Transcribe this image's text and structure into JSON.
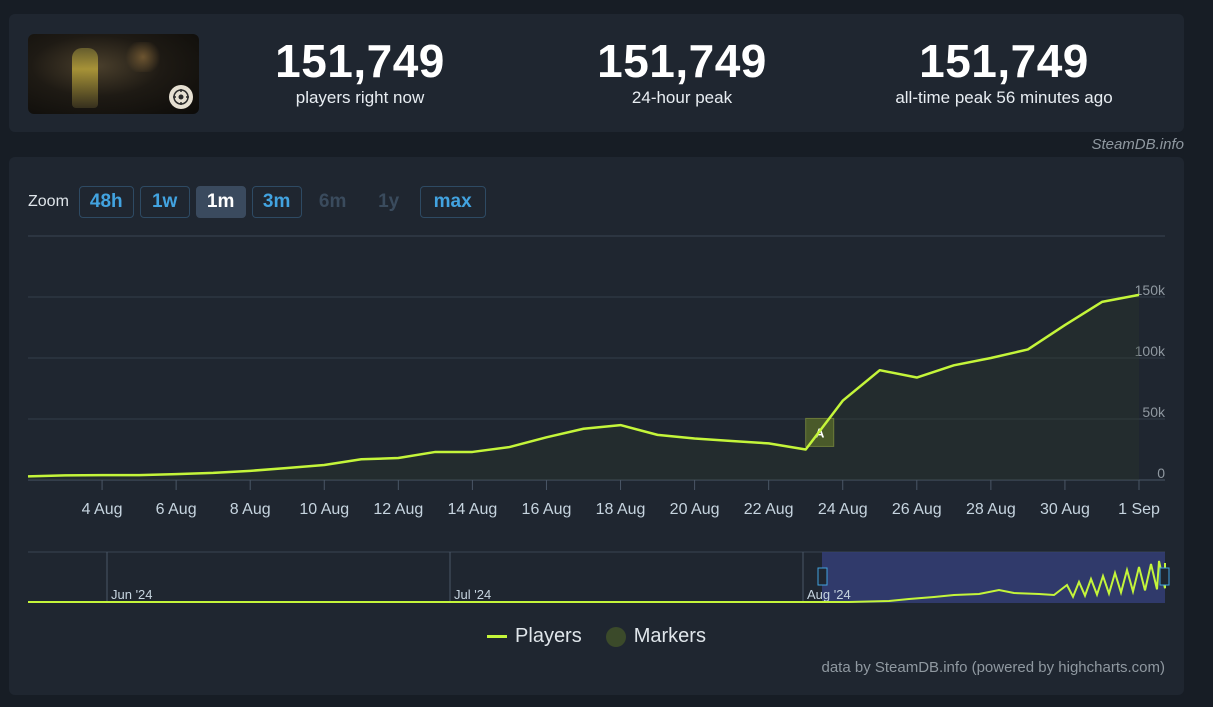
{
  "header": {
    "stats": [
      {
        "value": "151,749",
        "label": "players right now"
      },
      {
        "value": "151,749",
        "label": "24-hour peak"
      },
      {
        "value": "151,749",
        "label": "all-time peak 56 minutes ago"
      }
    ],
    "credit": "SteamDB.info"
  },
  "zoom": {
    "label": "Zoom",
    "buttons": [
      {
        "label": "48h",
        "state": "enabled"
      },
      {
        "label": "1w",
        "state": "enabled"
      },
      {
        "label": "1m",
        "state": "active"
      },
      {
        "label": "3m",
        "state": "enabled"
      },
      {
        "label": "6m",
        "state": "disabled"
      },
      {
        "label": "1y",
        "state": "disabled"
      },
      {
        "label": "max",
        "state": "enabled"
      }
    ]
  },
  "legend": {
    "players": "Players",
    "markers": "Markers"
  },
  "footer": {
    "credits": "data by SteamDB.info (powered by highcharts.com)"
  },
  "colors": {
    "line": "#c4f53a",
    "marker": "#4a5a2a",
    "background": "#1f2630",
    "navigator_selection": "#34407a"
  },
  "chart_data": {
    "type": "line",
    "series": [
      {
        "name": "Players"
      }
    ],
    "x": [
      "2 Aug",
      "3 Aug",
      "4 Aug",
      "5 Aug",
      "6 Aug",
      "7 Aug",
      "8 Aug",
      "9 Aug",
      "10 Aug",
      "11 Aug",
      "12 Aug",
      "13 Aug",
      "14 Aug",
      "15 Aug",
      "16 Aug",
      "17 Aug",
      "18 Aug",
      "19 Aug",
      "20 Aug",
      "21 Aug",
      "22 Aug",
      "23 Aug",
      "24 Aug",
      "25 Aug",
      "26 Aug",
      "27 Aug",
      "28 Aug",
      "29 Aug",
      "30 Aug",
      "31 Aug",
      "1 Sep"
    ],
    "values": [
      3000,
      3800,
      4000,
      4000,
      4800,
      5800,
      7500,
      9800,
      12300,
      17000,
      18000,
      23000,
      23000,
      27000,
      35000,
      42000,
      45000,
      37000,
      34000,
      32000,
      30000,
      25000,
      65000,
      90000,
      84000,
      94000,
      100000,
      107000,
      127000,
      146000,
      151749
    ],
    "xticks": [
      "4 Aug",
      "6 Aug",
      "8 Aug",
      "10 Aug",
      "12 Aug",
      "14 Aug",
      "16 Aug",
      "18 Aug",
      "20 Aug",
      "22 Aug",
      "24 Aug",
      "26 Aug",
      "28 Aug",
      "30 Aug",
      "1 Sep"
    ],
    "yticks": [
      "0",
      "50k",
      "100k",
      "150k"
    ],
    "ylim": [
      0,
      200000
    ],
    "grid": true,
    "legend_position": "bottom-center",
    "markers": [
      {
        "x": "23 Aug",
        "label": "A"
      }
    ],
    "navigator": {
      "labels": [
        "Jun '24",
        "Jul '24",
        "Aug '24"
      ],
      "selection": [
        "2 Aug",
        "1 Sep"
      ]
    }
  }
}
